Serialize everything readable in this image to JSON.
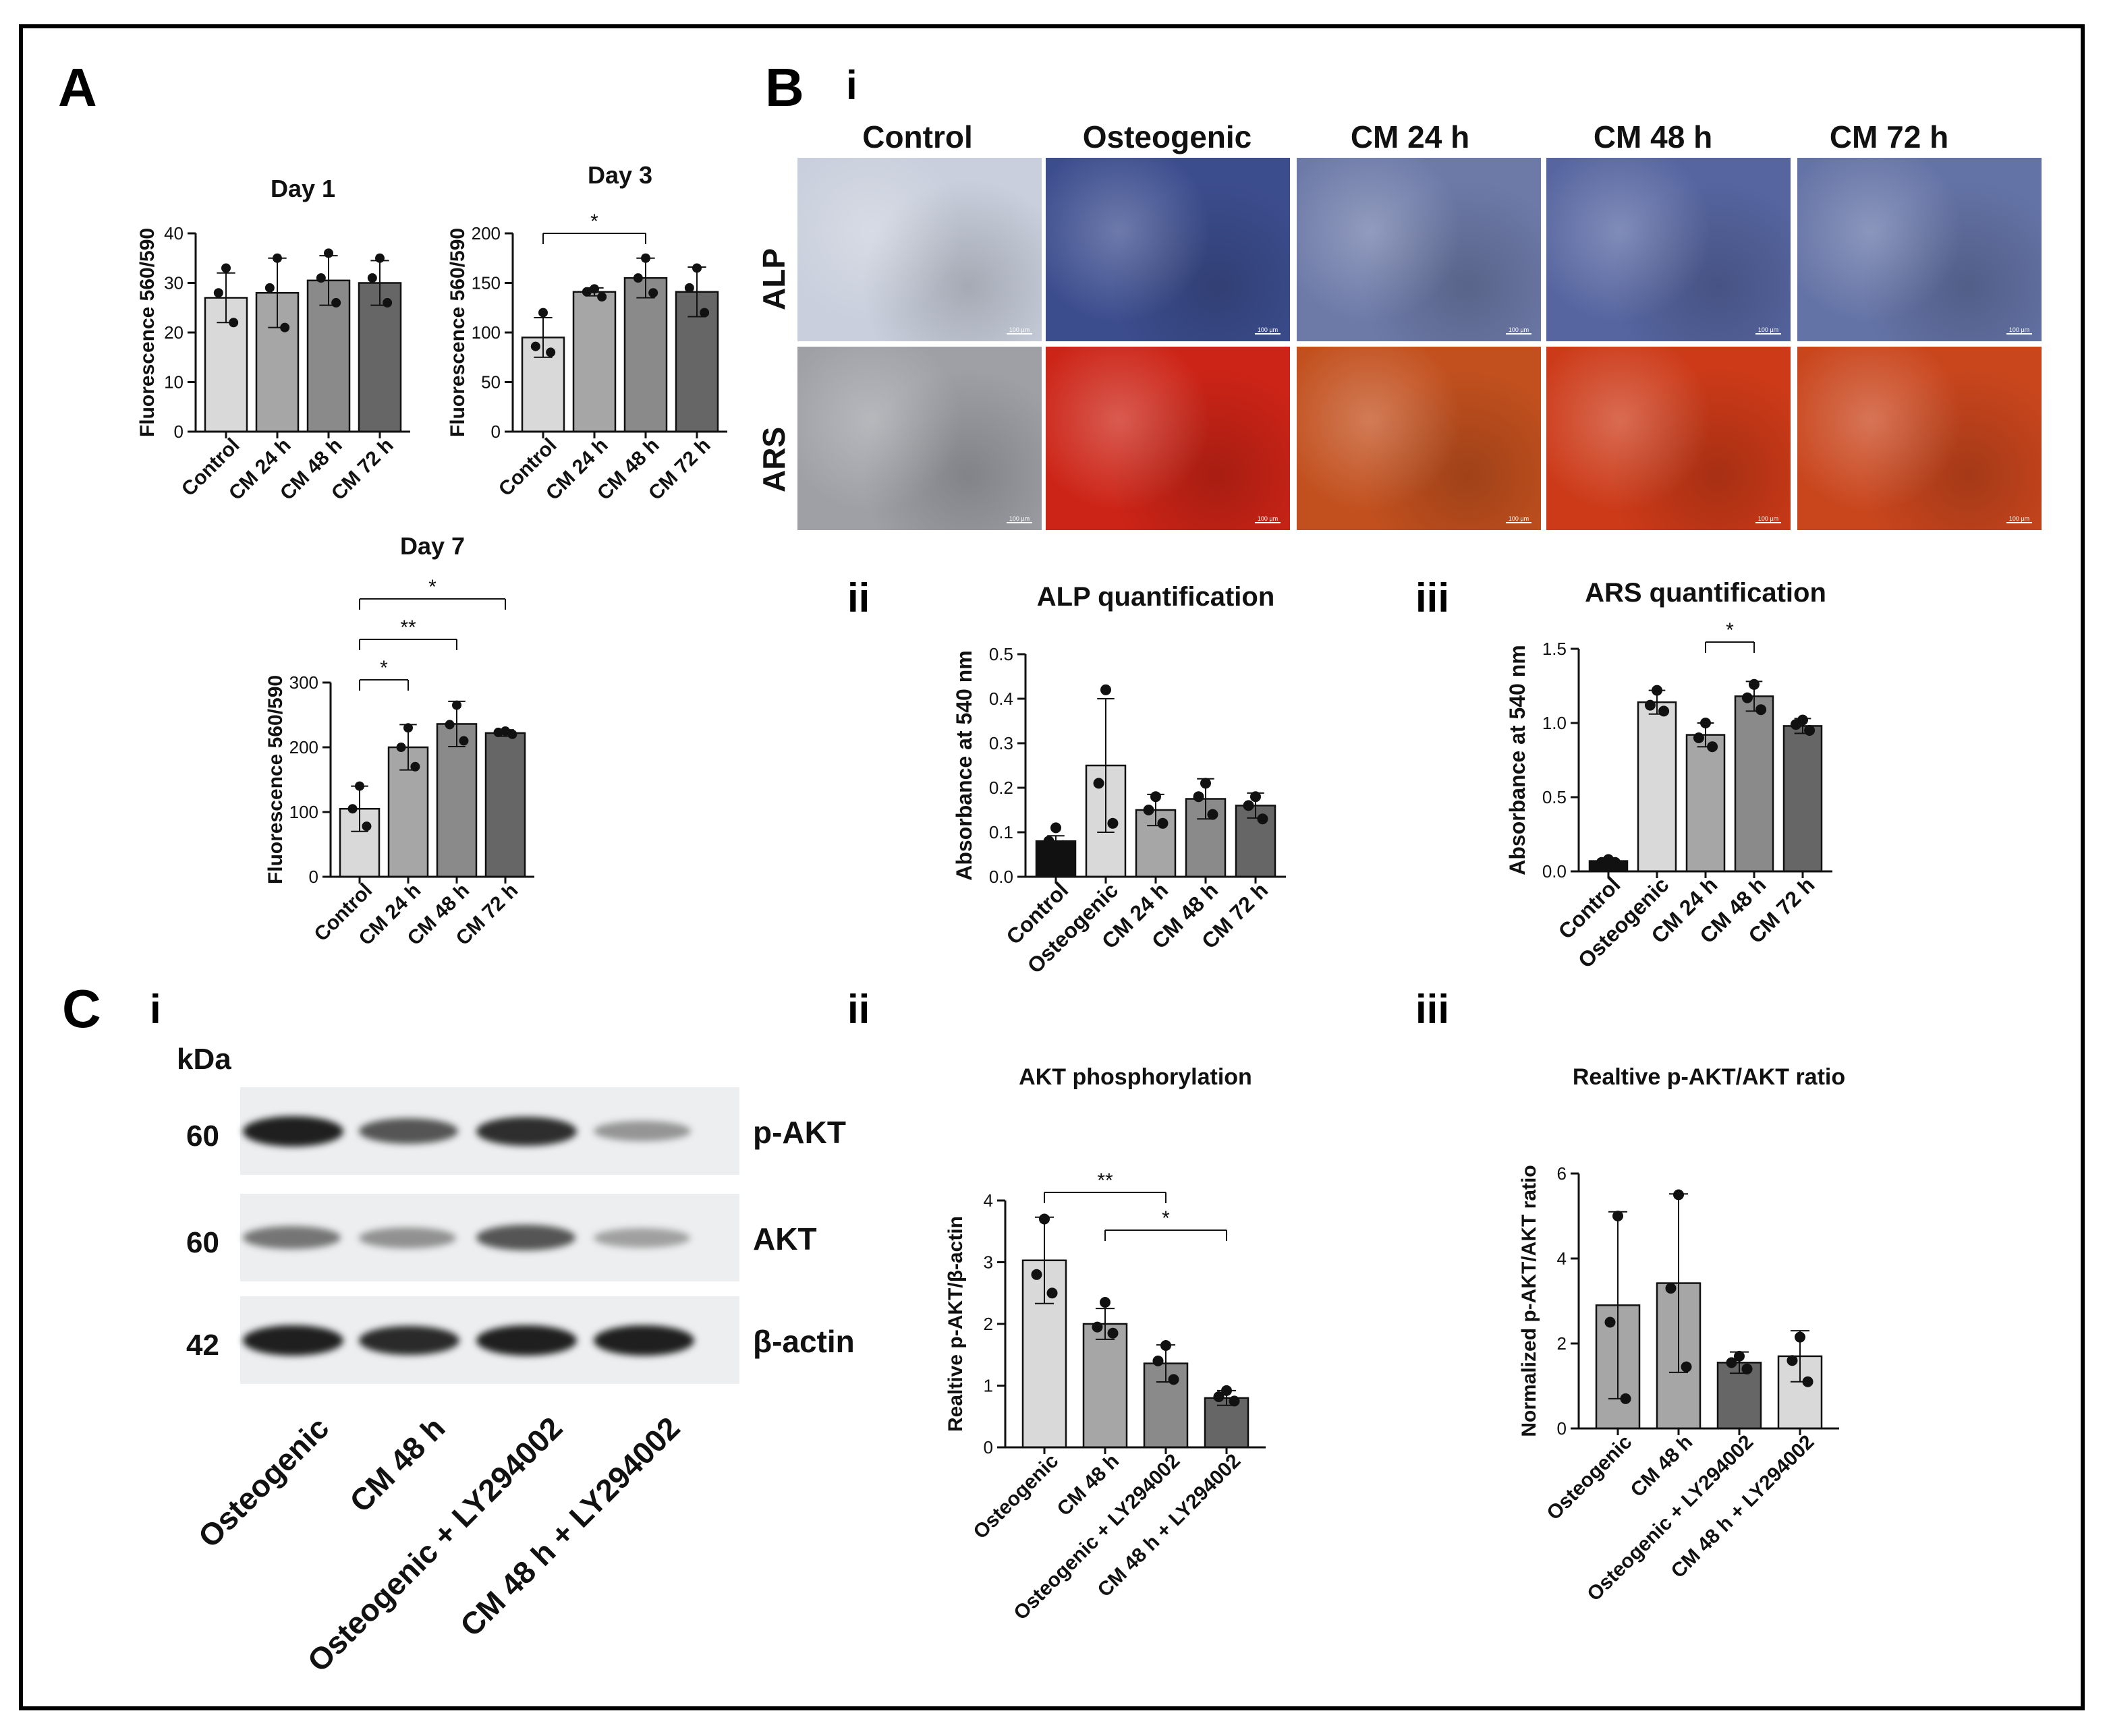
{
  "panels": {
    "A": "A",
    "B": "B",
    "C": "C",
    "Bi": "i",
    "Bii": "ii",
    "Biii": "iii",
    "Ci": "i",
    "Cii": "ii",
    "Ciii": "iii"
  },
  "micrographs": {
    "columns": [
      "Control",
      "Osteogenic",
      "CM 24 h",
      "CM 48 h",
      "CM 72 h"
    ],
    "rows": [
      "ALP",
      "ARS"
    ],
    "scale_bar": "100 µm",
    "colors": {
      "ALP": [
        "#c9cfdc",
        "#3c4d8e",
        "#6d7aa8",
        "#5665a0",
        "#6473a6"
      ],
      "ARS": [
        "#9ea0a6",
        "#cc2416",
        "#c2501e",
        "#cc3a18",
        "#c9461d"
      ]
    }
  },
  "western_blot": {
    "unit_label": "kDa",
    "rows": [
      {
        "protein": "p-AKT",
        "mw": "60",
        "intensity": [
          0.95,
          0.7,
          0.88,
          0.4
        ]
      },
      {
        "protein": "AKT",
        "mw": "60",
        "intensity": [
          0.55,
          0.42,
          0.7,
          0.35
        ]
      },
      {
        "protein": "β-actin",
        "mw": "42",
        "intensity": [
          0.95,
          0.9,
          0.95,
          0.95
        ]
      }
    ],
    "lanes": [
      "Osteogenic",
      "CM 48 h",
      "Osteogenic + LY294002",
      "CM 48 h + LY294002"
    ]
  },
  "chart_data": [
    {
      "id": "day1",
      "type": "bar",
      "title": "Day 1",
      "ylabel": "Fluorescence 560/590",
      "xlabel": "",
      "categories": [
        "Control",
        "CM 24 h",
        "CM 48 h",
        "CM 72 h"
      ],
      "values": [
        27,
        28,
        30.5,
        30
      ],
      "errors": [
        5,
        7,
        5,
        4.5
      ],
      "points": [
        [
          33,
          28,
          22
        ],
        [
          35,
          29,
          21
        ],
        [
          36,
          31,
          26
        ],
        [
          35,
          31,
          26
        ]
      ],
      "ylim": [
        0,
        40
      ],
      "yticks": [
        0,
        10,
        20,
        30,
        40
      ],
      "colors": [
        "#d9d9d9",
        "#a6a6a6",
        "#8a8a8a",
        "#666666"
      ],
      "significance": []
    },
    {
      "id": "day3",
      "type": "bar",
      "title": "Day 3",
      "ylabel": "Fluorescence 560/590",
      "xlabel": "",
      "categories": [
        "Control",
        "CM 24 h",
        "CM 48 h",
        "CM 72 h"
      ],
      "values": [
        95,
        141,
        155,
        141
      ],
      "errors": [
        20,
        4,
        20,
        25
      ],
      "points": [
        [
          120,
          86,
          80
        ],
        [
          144,
          141,
          136
        ],
        [
          175,
          155,
          140
        ],
        [
          165,
          145,
          120
        ]
      ],
      "ylim": [
        0,
        200
      ],
      "yticks": [
        0,
        50,
        100,
        150,
        200
      ],
      "colors": [
        "#d9d9d9",
        "#a6a6a6",
        "#8a8a8a",
        "#666666"
      ],
      "significance": [
        {
          "from": 0,
          "to": 2,
          "label": "*"
        }
      ]
    },
    {
      "id": "day7",
      "type": "bar",
      "title": "Day 7",
      "ylabel": "Fluorescence 560/590",
      "xlabel": "",
      "categories": [
        "Control",
        "CM 24 h",
        "CM 48 h",
        "CM 72 h"
      ],
      "values": [
        105,
        200,
        236,
        222
      ],
      "errors": [
        35,
        35,
        35,
        5
      ],
      "points": [
        [
          140,
          105,
          78
        ],
        [
          230,
          200,
          170
        ],
        [
          265,
          235,
          210
        ],
        [
          225,
          223,
          220
        ]
      ],
      "ylim": [
        0,
        300
      ],
      "yticks": [
        0,
        100,
        200,
        300
      ],
      "colors": [
        "#d9d9d9",
        "#a6a6a6",
        "#8a8a8a",
        "#666666"
      ],
      "significance": [
        {
          "from": 0,
          "to": 1,
          "label": "*"
        },
        {
          "from": 0,
          "to": 2,
          "label": "**"
        },
        {
          "from": 0,
          "to": 3,
          "label": "*"
        }
      ]
    },
    {
      "id": "alp",
      "type": "bar",
      "title": "ALP quantification",
      "ylabel": "Absorbance at 540 nm",
      "xlabel": "",
      "categories": [
        "Control",
        "Osteogenic",
        "CM 24 h",
        "CM 48 h",
        "CM 72 h"
      ],
      "values": [
        0.08,
        0.25,
        0.15,
        0.175,
        0.16
      ],
      "errors": [
        0.012,
        0.15,
        0.035,
        0.045,
        0.028
      ],
      "points": [
        [
          0.11,
          0.08,
          0.07
        ],
        [
          0.42,
          0.21,
          0.12
        ],
        [
          0.18,
          0.15,
          0.12
        ],
        [
          0.21,
          0.18,
          0.14
        ],
        [
          0.18,
          0.16,
          0.13
        ]
      ],
      "ylim": [
        0,
        0.5
      ],
      "yticks": [
        0.0,
        0.1,
        0.2,
        0.3,
        0.4,
        0.5
      ],
      "tickdec": 1,
      "colors": [
        "#111111",
        "#d9d9d9",
        "#a6a6a6",
        "#8a8a8a",
        "#666666"
      ],
      "significance": []
    },
    {
      "id": "ars",
      "type": "bar",
      "title": "ARS quantification",
      "ylabel": "Absorbance at 540 nm",
      "xlabel": "",
      "categories": [
        "Control",
        "Osteogenic",
        "CM 24 h",
        "CM 48 h",
        "CM 72 h"
      ],
      "values": [
        0.07,
        1.14,
        0.92,
        1.18,
        0.98
      ],
      "errors": [
        0.02,
        0.08,
        0.08,
        0.1,
        0.05
      ],
      "points": [
        [
          0.08,
          0.06,
          0.06
        ],
        [
          1.22,
          1.12,
          1.08
        ],
        [
          1.0,
          0.9,
          0.84
        ],
        [
          1.26,
          1.17,
          1.09
        ],
        [
          1.02,
          0.99,
          0.95
        ]
      ],
      "ylim": [
        0,
        1.5
      ],
      "yticks": [
        0.0,
        0.5,
        1.0,
        1.5
      ],
      "tickdec": 1,
      "colors": [
        "#111111",
        "#d9d9d9",
        "#a6a6a6",
        "#8a8a8a",
        "#666666"
      ],
      "significance": [
        {
          "from": 2,
          "to": 3,
          "label": "*"
        }
      ]
    },
    {
      "id": "akt",
      "type": "bar",
      "title": "AKT phosphorylation",
      "ylabel": "Realtive p-AKT/β-actin",
      "xlabel": "",
      "categories": [
        "Osteogenic",
        "CM 48 h",
        "Osteogenic + LY294002",
        "CM 48 h + LY294002"
      ],
      "values": [
        3.03,
        2.0,
        1.36,
        0.8
      ],
      "errors": [
        0.7,
        0.25,
        0.3,
        0.12
      ],
      "points": [
        [
          3.7,
          2.8,
          2.5
        ],
        [
          2.35,
          1.95,
          1.85
        ],
        [
          1.65,
          1.4,
          1.1
        ],
        [
          0.92,
          0.82,
          0.75
        ]
      ],
      "ylim": [
        0,
        4
      ],
      "yticks": [
        0,
        1,
        2,
        3,
        4
      ],
      "colors": [
        "#d9d9d9",
        "#a6a6a6",
        "#8a8a8a",
        "#666666"
      ],
      "significance": [
        {
          "from": 0,
          "to": 2,
          "label": "**"
        },
        {
          "from": 1,
          "to": 3,
          "label": "*"
        }
      ]
    },
    {
      "id": "ratio",
      "type": "bar",
      "title": "Realtive p-AKT/AKT ratio",
      "ylabel": "Normalized p-AKT/AKT ratio",
      "xlabel": "",
      "categories": [
        "Osteogenic",
        "CM 48 h",
        "Osteogenic + LY294002",
        "CM 48 h + LY294002"
      ],
      "values": [
        2.9,
        3.42,
        1.55,
        1.7
      ],
      "errors": [
        2.2,
        2.1,
        0.25,
        0.6
      ],
      "points": [
        [
          5.0,
          2.5,
          0.7
        ],
        [
          5.5,
          3.3,
          1.45
        ],
        [
          1.7,
          1.55,
          1.4
        ],
        [
          2.15,
          1.6,
          1.1
        ]
      ],
      "ylim": [
        0,
        6
      ],
      "yticks": [
        0,
        2,
        4,
        6
      ],
      "colors": [
        "#a6a6a6",
        "#a6a6a6",
        "#666666",
        "#d9d9d9"
      ],
      "significance": []
    }
  ]
}
